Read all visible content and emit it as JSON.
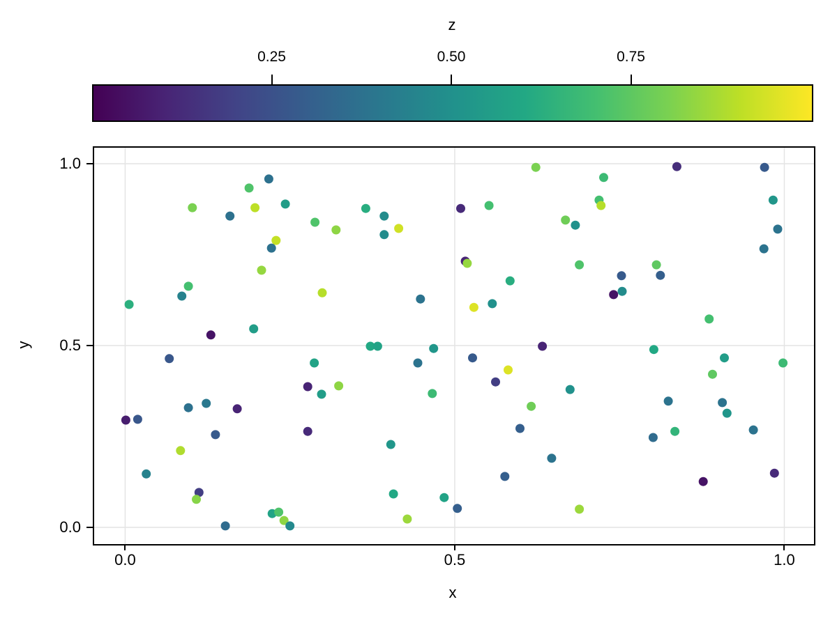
{
  "figure": {
    "background": "#ffffff"
  },
  "colorbar": {
    "title": "z",
    "limits": [
      0,
      1
    ],
    "tick_values": [
      0.25,
      0.5,
      0.75
    ],
    "tick_labels": [
      "0.25",
      "0.50",
      "0.75"
    ]
  },
  "colors": {
    "grid": "#e4e4e4",
    "axis": "#000000",
    "background": "#ffffff",
    "viridis_stops": [
      "#440154",
      "#482475",
      "#414487",
      "#355f8d",
      "#2a788e",
      "#21918c",
      "#22a884",
      "#44bf70",
      "#7ad151",
      "#bddf26",
      "#fde725"
    ]
  },
  "chart_data": {
    "type": "scatter",
    "title": "",
    "xlabel": "x",
    "ylabel": "y",
    "color_label": "z",
    "colormap": "viridis",
    "grid": true,
    "marker_radius": 6.5,
    "xlim": [
      -0.047,
      1.045
    ],
    "ylim": [
      -0.046,
      1.044
    ],
    "x_tick_values": [
      0.0,
      0.5,
      1.0
    ],
    "x_tick_labels": [
      "0.0",
      "0.5",
      "1.0"
    ],
    "y_tick_values": [
      0.0,
      0.5,
      1.0
    ],
    "y_tick_labels": [
      "0.0",
      "0.5",
      "1.0"
    ],
    "points_format": [
      "x",
      "y",
      "z"
    ],
    "points": [
      [
        0.218,
        0.958,
        0.37
      ],
      [
        0.188,
        0.933,
        0.72
      ],
      [
        0.102,
        0.879,
        0.8
      ],
      [
        0.197,
        0.879,
        0.9
      ],
      [
        0.243,
        0.889,
        0.55
      ],
      [
        0.159,
        0.856,
        0.37
      ],
      [
        0.288,
        0.839,
        0.72
      ],
      [
        0.229,
        0.789,
        0.91
      ],
      [
        0.222,
        0.768,
        0.37
      ],
      [
        0.207,
        0.707,
        0.84
      ],
      [
        0.096,
        0.663,
        0.7
      ],
      [
        0.086,
        0.636,
        0.44
      ],
      [
        0.299,
        0.645,
        0.89
      ],
      [
        0.006,
        0.613,
        0.63
      ],
      [
        0.195,
        0.546,
        0.55
      ],
      [
        0.13,
        0.529,
        0.05
      ],
      [
        0.623,
        0.99,
        0.8
      ],
      [
        0.365,
        0.877,
        0.62
      ],
      [
        0.393,
        0.856,
        0.48
      ],
      [
        0.415,
        0.822,
        0.93
      ],
      [
        0.32,
        0.818,
        0.83
      ],
      [
        0.393,
        0.805,
        0.48
      ],
      [
        0.509,
        0.877,
        0.12
      ],
      [
        0.552,
        0.885,
        0.7
      ],
      [
        0.668,
        0.845,
        0.78
      ],
      [
        0.516,
        0.732,
        0.1
      ],
      [
        0.519,
        0.726,
        0.84
      ],
      [
        0.584,
        0.678,
        0.62
      ],
      [
        0.448,
        0.628,
        0.38
      ],
      [
        0.529,
        0.605,
        0.95
      ],
      [
        0.557,
        0.615,
        0.5
      ],
      [
        0.837,
        0.992,
        0.13
      ],
      [
        0.97,
        0.99,
        0.28
      ],
      [
        0.726,
        0.962,
        0.68
      ],
      [
        0.719,
        0.9,
        0.7
      ],
      [
        0.722,
        0.885,
        0.89
      ],
      [
        0.983,
        0.9,
        0.52
      ],
      [
        0.683,
        0.831,
        0.5
      ],
      [
        0.99,
        0.82,
        0.38
      ],
      [
        0.969,
        0.766,
        0.38
      ],
      [
        0.689,
        0.722,
        0.72
      ],
      [
        0.753,
        0.692,
        0.28
      ],
      [
        0.812,
        0.693,
        0.3
      ],
      [
        0.806,
        0.722,
        0.75
      ],
      [
        0.754,
        0.649,
        0.48
      ],
      [
        0.741,
        0.64,
        0.05
      ],
      [
        0.886,
        0.573,
        0.7
      ],
      [
        0.067,
        0.464,
        0.27
      ],
      [
        0.287,
        0.452,
        0.58
      ],
      [
        0.277,
        0.387,
        0.1
      ],
      [
        0.298,
        0.366,
        0.55
      ],
      [
        0.096,
        0.329,
        0.37
      ],
      [
        0.123,
        0.341,
        0.4
      ],
      [
        0.17,
        0.326,
        0.1
      ],
      [
        0.001,
        0.295,
        0.08
      ],
      [
        0.019,
        0.297,
        0.27
      ],
      [
        0.137,
        0.255,
        0.28
      ],
      [
        0.277,
        0.264,
        0.12
      ],
      [
        0.084,
        0.211,
        0.88
      ],
      [
        0.032,
        0.147,
        0.44
      ],
      [
        0.112,
        0.096,
        0.18
      ],
      [
        0.108,
        0.077,
        0.82
      ],
      [
        0.223,
        0.038,
        0.58
      ],
      [
        0.233,
        0.042,
        0.72
      ],
      [
        0.241,
        0.019,
        0.83
      ],
      [
        0.25,
        0.004,
        0.47
      ],
      [
        0.152,
        0.004,
        0.35
      ],
      [
        0.372,
        0.498,
        0.6
      ],
      [
        0.383,
        0.498,
        0.58
      ],
      [
        0.468,
        0.492,
        0.52
      ],
      [
        0.633,
        0.498,
        0.1
      ],
      [
        0.444,
        0.452,
        0.38
      ],
      [
        0.527,
        0.466,
        0.28
      ],
      [
        0.581,
        0.433,
        0.95
      ],
      [
        0.562,
        0.4,
        0.18
      ],
      [
        0.324,
        0.389,
        0.83
      ],
      [
        0.675,
        0.379,
        0.5
      ],
      [
        0.466,
        0.368,
        0.68
      ],
      [
        0.616,
        0.333,
        0.78
      ],
      [
        0.599,
        0.272,
        0.3
      ],
      [
        0.403,
        0.228,
        0.52
      ],
      [
        0.647,
        0.19,
        0.38
      ],
      [
        0.576,
        0.14,
        0.3
      ],
      [
        0.407,
        0.092,
        0.6
      ],
      [
        0.484,
        0.082,
        0.58
      ],
      [
        0.504,
        0.052,
        0.3
      ],
      [
        0.428,
        0.023,
        0.85
      ],
      [
        0.802,
        0.489,
        0.6
      ],
      [
        0.909,
        0.466,
        0.55
      ],
      [
        0.998,
        0.452,
        0.68
      ],
      [
        0.891,
        0.421,
        0.75
      ],
      [
        0.824,
        0.347,
        0.38
      ],
      [
        0.906,
        0.343,
        0.38
      ],
      [
        0.913,
        0.314,
        0.52
      ],
      [
        0.834,
        0.264,
        0.65
      ],
      [
        0.801,
        0.247,
        0.35
      ],
      [
        0.953,
        0.268,
        0.38
      ],
      [
        0.985,
        0.149,
        0.12
      ],
      [
        0.877,
        0.126,
        0.05
      ],
      [
        0.689,
        0.05,
        0.85
      ]
    ]
  }
}
